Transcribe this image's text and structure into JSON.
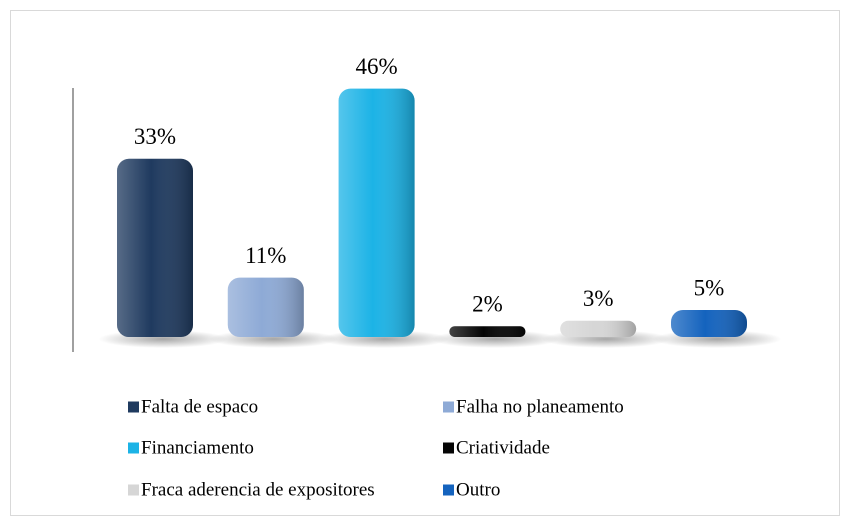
{
  "chart_data": {
    "type": "bar",
    "categories": [
      "Falta de espaco",
      "Falha no planeamento",
      "Financiamento",
      "Criatividade",
      "Fraca aderencia de expositores",
      "Outro"
    ],
    "values": [
      33,
      11,
      46,
      2,
      3,
      5
    ],
    "value_labels": [
      "33%",
      "11%",
      "46%",
      "2%",
      "3%",
      "5%"
    ],
    "colors": [
      "#1f3a5f",
      "#8eaad6",
      "#1cb3e6",
      "#050505",
      "#d6d6d6",
      "#1463be"
    ]
  }
}
